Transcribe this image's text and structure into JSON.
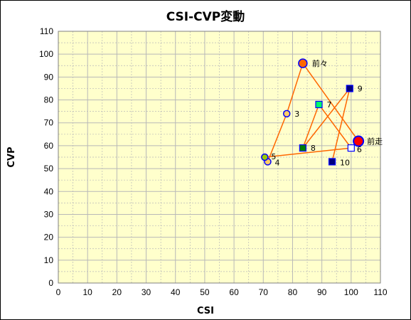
{
  "chart_data": {
    "type": "scatter",
    "title": "CSI-CVP変動",
    "xlabel": "CSI",
    "ylabel": "CVP",
    "xlim": [
      0,
      110
    ],
    "ylim": [
      0,
      110
    ],
    "xticks": [
      0,
      10,
      20,
      30,
      40,
      50,
      60,
      70,
      80,
      90,
      100,
      110
    ],
    "yticks": [
      0,
      10,
      20,
      30,
      40,
      50,
      60,
      70,
      80,
      90,
      100,
      110
    ],
    "grid": true,
    "plot_background": "#ffffcc",
    "grid_color": "#b8b8b8",
    "line_color": "#ff6600",
    "line_order": [
      "10",
      "9",
      "8",
      "7",
      "6",
      "5",
      "4",
      "3",
      "前々",
      "前走"
    ],
    "points": [
      {
        "label": "前走",
        "x": 102.5,
        "y": 62,
        "shape": "circle",
        "fill": "#ff0000",
        "stroke": "#0000ff",
        "size": "large"
      },
      {
        "label": "前々",
        "x": 83.5,
        "y": 96,
        "shape": "circle",
        "fill": "#ff6600",
        "stroke": "#0000ff",
        "size": "medium"
      },
      {
        "label": "3",
        "x": 78,
        "y": 74,
        "shape": "circle",
        "fill": "#ffcc66",
        "stroke": "#0000ff",
        "size": "small"
      },
      {
        "label": "4",
        "x": 71.5,
        "y": 53,
        "shape": "circle",
        "fill": "#ffcc66",
        "stroke": "#0000ff",
        "size": "small"
      },
      {
        "label": "5",
        "x": 70.5,
        "y": 55,
        "shape": "circle",
        "fill": "#99cc00",
        "stroke": "#0000ff",
        "size": "small"
      },
      {
        "label": "6",
        "x": 100,
        "y": 59,
        "shape": "square",
        "fill": "#ffffff",
        "stroke": "#0000ff",
        "size": "small"
      },
      {
        "label": "7",
        "x": 89,
        "y": 78,
        "shape": "square",
        "fill": "#00ff66",
        "stroke": "#0000ff",
        "size": "small"
      },
      {
        "label": "8",
        "x": 83.5,
        "y": 59,
        "shape": "square",
        "fill": "#008000",
        "stroke": "#0000ff",
        "size": "small"
      },
      {
        "label": "9",
        "x": 99.5,
        "y": 85,
        "shape": "square",
        "fill": "#000080",
        "stroke": "#0000ff",
        "size": "small"
      },
      {
        "label": "10",
        "x": 93.5,
        "y": 53,
        "shape": "square",
        "fill": "#000080",
        "stroke": "#0000ff",
        "size": "small"
      }
    ]
  }
}
